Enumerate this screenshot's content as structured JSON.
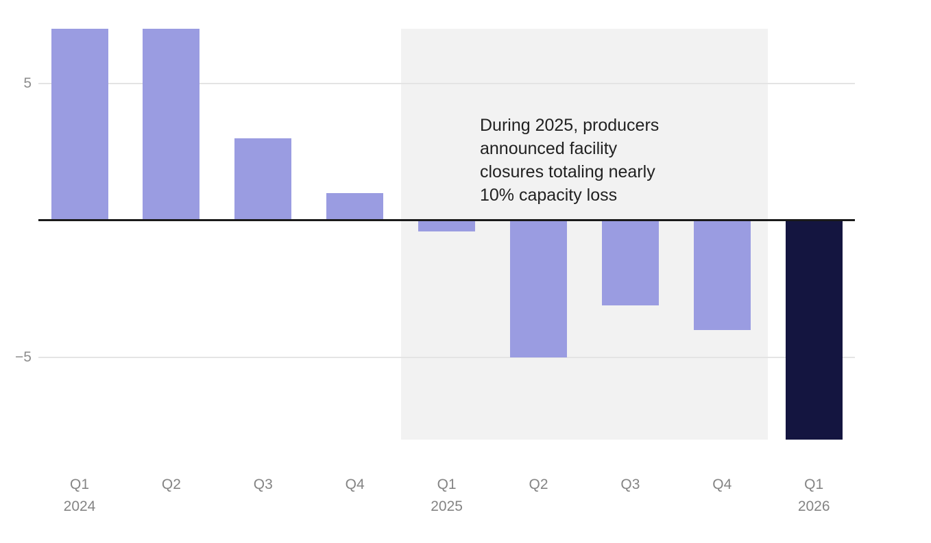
{
  "chart_data": {
    "type": "bar",
    "title": "",
    "categories": [
      "Q1 2024",
      "Q2 2024",
      "Q3 2024",
      "Q4 2024",
      "Q1 2025",
      "Q2 2025",
      "Q3 2025",
      "Q4 2025",
      "Q1 2026"
    ],
    "x_tick_labels": [
      {
        "line1": "Q1",
        "line2": "2024"
      },
      {
        "line1": "Q2",
        "line2": ""
      },
      {
        "line1": "Q3",
        "line2": ""
      },
      {
        "line1": "Q4",
        "line2": ""
      },
      {
        "line1": "Q1",
        "line2": "2025"
      },
      {
        "line1": "Q2",
        "line2": ""
      },
      {
        "line1": "Q3",
        "line2": ""
      },
      {
        "line1": "Q4",
        "line2": ""
      },
      {
        "line1": "Q1",
        "line2": "2026"
      }
    ],
    "values": [
      7,
      7,
      3,
      1,
      -0.4,
      -5,
      -3.1,
      -4,
      -8
    ],
    "bar_colors": [
      "#9a9ce1",
      "#9a9ce1",
      "#9a9ce1",
      "#9a9ce1",
      "#9a9ce1",
      "#9a9ce1",
      "#9a9ce1",
      "#9a9ce1",
      "#141540"
    ],
    "ylim": [
      -8,
      7
    ],
    "y_ticks": [
      {
        "value": 5,
        "label": "5"
      },
      {
        "value": -5,
        "label": "−5"
      }
    ],
    "baseline": 0,
    "grid": "horizontal",
    "legend": "none",
    "highlight_band": {
      "start_category": "Q1 2025",
      "end_category": "Q4 2025",
      "color": "#f2f2f2"
    },
    "annotation": {
      "text": "During 2025, producers\nannounced facility\nclosures totaling nearly\n10% capacity loss",
      "color": "#212121"
    },
    "colors": {
      "bar_default": "#9a9ce1",
      "bar_final": "#141540",
      "grid_line": "#e4e4e4",
      "zero_line": "#1a1a1a",
      "axis_text": "#8d8d8d",
      "band": "#f2f2f2"
    }
  }
}
